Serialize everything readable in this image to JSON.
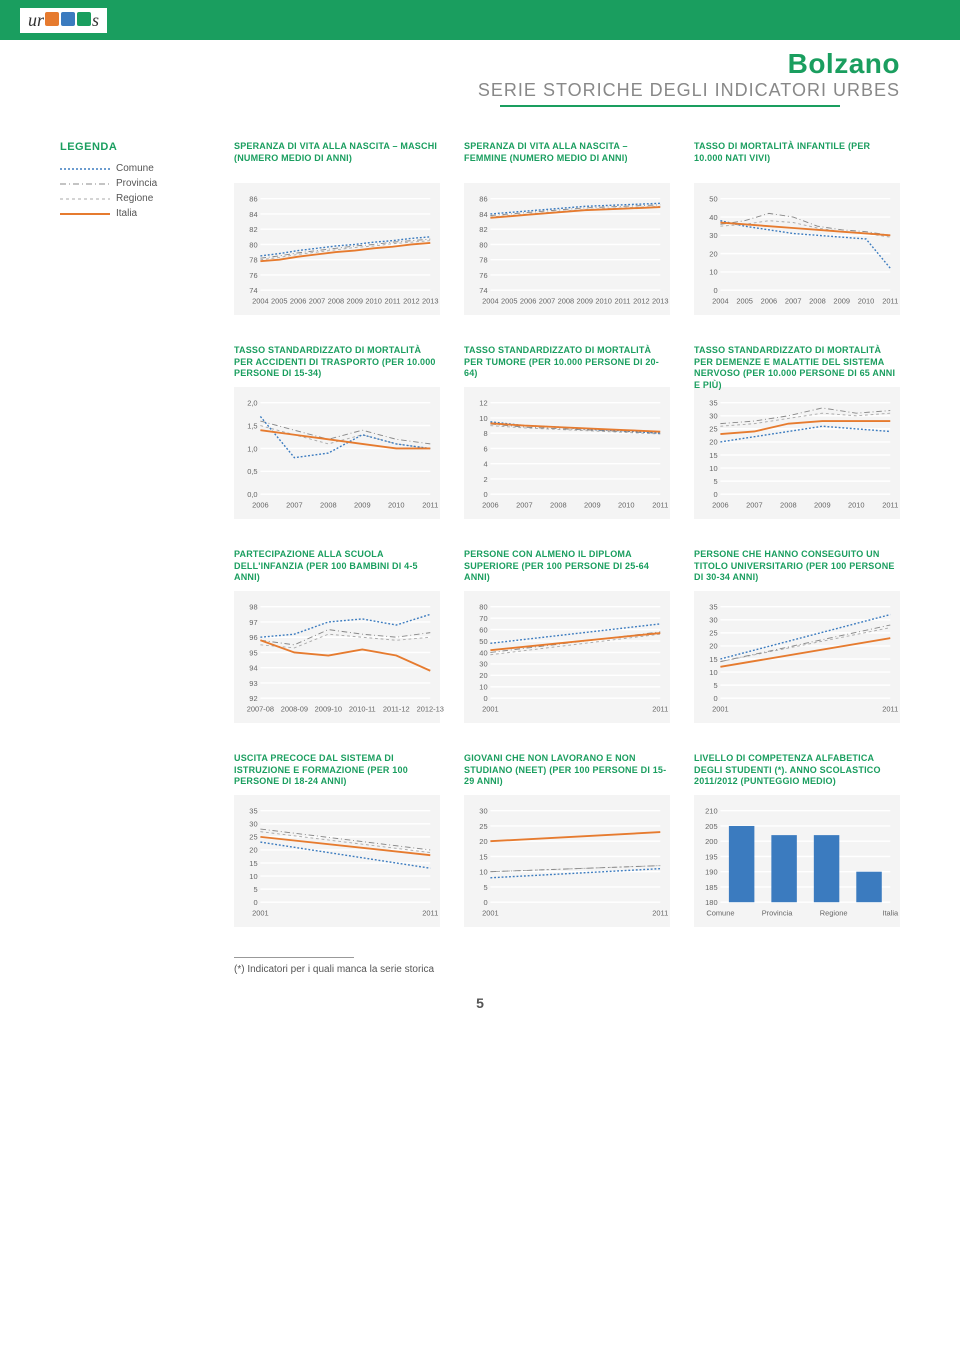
{
  "logo": {
    "prefix": "ur",
    "square_colors": [
      "#e67b2f",
      "#3b7bbf",
      "#1a9e5f"
    ],
    "suffix": "s"
  },
  "header": {
    "title": "Bolzano",
    "subtitle": "SERIE STORICHE DEGLI INDICATORI URBES"
  },
  "legend": {
    "title": "LEGENDA",
    "items": [
      {
        "label": "Comune",
        "style": "comune"
      },
      {
        "label": "Provincia",
        "style": "provincia"
      },
      {
        "label": "Regione",
        "style": "regione"
      },
      {
        "label": "Italia",
        "style": "italia"
      }
    ]
  },
  "colors": {
    "comune": "#3b7bbf",
    "provincia": "#888888",
    "regione": "#aaaaaa",
    "italia": "#e67b2f",
    "accent": "#1a9e5f",
    "panel_bg": "#f4f4f4",
    "grid": "#ffffff"
  },
  "charts": [
    {
      "title": "SPERANZA DI VITA ALLA NASCITA – MASCHI (NUMERO MEDIO DI ANNI)",
      "ylim": [
        74,
        86
      ],
      "ytick_step": 2,
      "xlabels": [
        "2004",
        "2005",
        "2006",
        "2007",
        "2008",
        "2009",
        "2010",
        "2011",
        "2012",
        "2013"
      ],
      "series": {
        "comune": [
          78.5,
          78.8,
          79.2,
          79.5,
          79.8,
          80.0,
          80.3,
          80.5,
          80.8,
          81.0
        ],
        "provincia": [
          78.2,
          78.5,
          78.9,
          79.2,
          79.5,
          79.8,
          80.0,
          80.3,
          80.5,
          80.7
        ],
        "regione": [
          78.0,
          78.3,
          78.7,
          79.0,
          79.3,
          79.6,
          79.8,
          80.1,
          80.3,
          80.5
        ],
        "italia": [
          77.8,
          78.0,
          78.4,
          78.7,
          79.0,
          79.2,
          79.5,
          79.7,
          80.0,
          80.2
        ]
      }
    },
    {
      "title": "SPERANZA DI VITA ALLA NASCITA – FEMMINE (NUMERO MEDIO DI ANNI)",
      "ylim": [
        74,
        86
      ],
      "ytick_step": 2,
      "xlabels": [
        "2004",
        "2005",
        "2006",
        "2007",
        "2008",
        "2009",
        "2010",
        "2011",
        "2012",
        "2013"
      ],
      "series": {
        "comune": [
          84.0,
          84.2,
          84.4,
          84.6,
          84.8,
          85.0,
          85.1,
          85.2,
          85.3,
          85.4
        ],
        "provincia": [
          83.8,
          84.0,
          84.2,
          84.4,
          84.6,
          84.8,
          84.9,
          85.0,
          85.1,
          85.2
        ],
        "regione": [
          83.6,
          83.8,
          84.0,
          84.2,
          84.4,
          84.6,
          84.7,
          84.8,
          84.9,
          85.0
        ],
        "italia": [
          83.5,
          83.7,
          83.9,
          84.1,
          84.3,
          84.5,
          84.6,
          84.7,
          84.8,
          84.9
        ]
      }
    },
    {
      "title": "TASSO DI MORTALITÀ INFANTILE (PER 10.000 NATI VIVI)",
      "ylim": [
        0,
        50
      ],
      "ytick_step": 10,
      "xlabels": [
        "2004",
        "2005",
        "2006",
        "2007",
        "2008",
        "2009",
        "2010",
        "2011"
      ],
      "series": {
        "comune": [
          38,
          35,
          33,
          31,
          30,
          29,
          28,
          12
        ],
        "provincia": [
          36,
          38,
          42,
          40,
          35,
          33,
          32,
          30
        ],
        "regione": [
          35,
          36,
          38,
          37,
          34,
          32,
          31,
          29
        ],
        "italia": [
          37,
          36,
          35,
          34,
          33,
          32,
          31,
          30
        ]
      }
    },
    {
      "title": "TASSO STANDARDIZZATO DI MORTALITÀ PER ACCIDENTI DI TRASPORTO (PER 10.000 PERSONE DI 15-34)",
      "ylim": [
        0,
        2
      ],
      "ytick_step": 0.5,
      "decimals": 1,
      "xlabels": [
        "2006",
        "2007",
        "2008",
        "2009",
        "2010",
        "2011"
      ],
      "series": {
        "comune": [
          1.7,
          0.8,
          0.9,
          1.3,
          1.1,
          1.0
        ],
        "provincia": [
          1.6,
          1.4,
          1.2,
          1.4,
          1.2,
          1.1
        ],
        "regione": [
          1.5,
          1.3,
          1.1,
          1.3,
          1.1,
          1.0
        ],
        "italia": [
          1.4,
          1.3,
          1.2,
          1.1,
          1.0,
          1.0
        ]
      }
    },
    {
      "title": "TASSO STANDARDIZZATO DI MORTALITÀ PER TUMORE (PER 10.000 PERSONE DI 20-64)",
      "ylim": [
        0,
        12
      ],
      "ytick_step": 2,
      "xlabels": [
        "2006",
        "2007",
        "2008",
        "2009",
        "2010",
        "2011"
      ],
      "series": {
        "comune": [
          9.5,
          9.0,
          8.8,
          8.5,
          8.3,
          8.0
        ],
        "provincia": [
          9.2,
          8.8,
          8.6,
          8.4,
          8.2,
          8.0
        ],
        "regione": [
          9.0,
          8.7,
          8.5,
          8.3,
          8.1,
          7.9
        ],
        "italia": [
          9.3,
          9.0,
          8.8,
          8.6,
          8.4,
          8.2
        ]
      }
    },
    {
      "title": "TASSO STANDARDIZZATO DI MORTALITÀ PER DEMENZE E MALATTIE DEL SISTEMA NERVOSO (PER 10.000 PERSONE DI 65 ANNI E PIÙ)",
      "ylim": [
        0,
        35
      ],
      "ytick_step": 5,
      "xlabels": [
        "2006",
        "2007",
        "2008",
        "2009",
        "2010",
        "2011"
      ],
      "series": {
        "comune": [
          20,
          22,
          24,
          26,
          25,
          24
        ],
        "provincia": [
          27,
          28,
          30,
          33,
          31,
          32
        ],
        "regione": [
          26,
          27,
          29,
          31,
          30,
          31
        ],
        "italia": [
          23,
          24,
          27,
          28,
          28,
          28
        ]
      }
    },
    {
      "title": "PARTECIPAZIONE ALLA SCUOLA DELL'INFANZIA (PER 100 BAMBINI DI 4-5 ANNI)",
      "ylim": [
        92,
        98
      ],
      "ytick_step": 1,
      "xlabels": [
        "2007-08",
        "2008-09",
        "2009-10",
        "2010-11",
        "2011-12",
        "2012-13"
      ],
      "series": {
        "comune": [
          96.0,
          96.2,
          97.0,
          97.2,
          96.8,
          97.5
        ],
        "provincia": [
          95.8,
          95.5,
          96.5,
          96.2,
          96.0,
          96.3
        ],
        "regione": [
          95.5,
          95.3,
          96.2,
          96.0,
          95.8,
          96.0
        ],
        "italia": [
          95.8,
          95.0,
          94.8,
          95.2,
          94.8,
          93.8
        ]
      }
    },
    {
      "title": "PERSONE CON ALMENO IL DIPLOMA SUPERIORE (PER 100 PERSONE DI 25-64 ANNI)",
      "ylim": [
        0,
        80
      ],
      "ytick_step": 10,
      "xlabels": [
        "2001",
        "2011"
      ],
      "series": {
        "comune": [
          48,
          65
        ],
        "provincia": [
          40,
          58
        ],
        "regione": [
          38,
          56
        ],
        "italia": [
          42,
          57
        ]
      }
    },
    {
      "title": "PERSONE CHE HANNO CONSEGUITO UN TITOLO UNIVERSITARIO (PER 100 PERSONE DI 30-34 ANNI)",
      "ylim": [
        0,
        35
      ],
      "ytick_step": 5,
      "xlabels": [
        "2001",
        "2011"
      ],
      "series": {
        "comune": [
          15,
          32
        ],
        "provincia": [
          14,
          28
        ],
        "regione": [
          14,
          27
        ],
        "italia": [
          12,
          23
        ]
      }
    },
    {
      "title": "USCITA PRECOCE DAL SISTEMA DI ISTRUZIONE E FORMAZIONE (PER 100 PERSONE DI 18-24 ANNI)",
      "ylim": [
        0,
        35
      ],
      "ytick_step": 5,
      "xlabels": [
        "2001",
        "2011"
      ],
      "series": {
        "comune": [
          23,
          13
        ],
        "provincia": [
          28,
          20
        ],
        "regione": [
          27,
          19
        ],
        "italia": [
          25,
          18
        ]
      }
    },
    {
      "title": "GIOVANI CHE NON LAVORANO E NON STUDIANO (NEET) (PER 100 PERSONE DI 15-29 ANNI)",
      "ylim": [
        0,
        30
      ],
      "ytick_step": 5,
      "xlabels": [
        "2001",
        "2011"
      ],
      "series": {
        "comune": [
          8,
          11
        ],
        "provincia": [
          10,
          12
        ],
        "regione": [
          10,
          12
        ],
        "italia": [
          20,
          23
        ]
      }
    },
    {
      "title": "LIVELLO DI COMPETENZA ALFABETICA DEGLI STUDENTI (*). ANNO SCOLASTICO 2011/2012 (PUNTEGGIO MEDIO)",
      "type": "bar",
      "ylim": [
        180,
        210
      ],
      "ytick_step": 5,
      "xlabels": [
        "Comune",
        "Provincia",
        "Regione",
        "Italia"
      ],
      "bars": [
        205,
        202,
        202,
        190
      ],
      "bar_color": "#3b7bbf"
    }
  ],
  "footnote": "(*) Indicatori per i quali manca la serie storica",
  "page_number": "5"
}
